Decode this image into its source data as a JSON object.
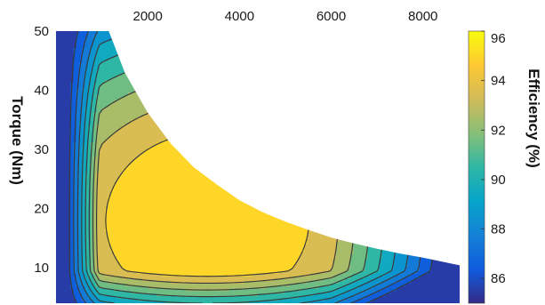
{
  "chart_data": {
    "type": "contour",
    "title": "",
    "xlabel": "",
    "ylabel": "Torque (Nm)",
    "colorbar_label": "Efficiency (%)",
    "xlim": [
      0,
      8800
    ],
    "ylim": [
      4,
      50
    ],
    "clim": [
      85,
      96
    ],
    "x_ticks": [
      2000,
      4000,
      6000,
      8000
    ],
    "y_ticks": [
      10,
      20,
      30,
      40,
      50
    ],
    "colorbar_ticks": [
      86,
      88,
      90,
      92,
      94,
      96
    ],
    "colormap": "parula",
    "colormap_colors": [
      "#352a87",
      "#0f5cdd",
      "#1481d6",
      "#06a4ca",
      "#2eb7a4",
      "#87bf77",
      "#d1bb59",
      "#fec832",
      "#f9fb0e"
    ],
    "contour_levels": [
      86,
      87,
      88,
      89,
      90,
      91,
      92,
      93,
      94
    ],
    "torque_limit_curve": {
      "x": [
        1150,
        1500,
        2000,
        2500,
        3000,
        3500,
        4000,
        4500,
        5000,
        5500,
        6000,
        6500,
        7000,
        7500,
        8000,
        8500,
        8800
      ],
      "y": [
        50,
        43,
        36.2,
        31,
        27,
        24.1,
        21.4,
        19.4,
        17.8,
        16.4,
        15.1,
        14.1,
        13.2,
        12.4,
        11.7,
        10.9,
        10.4
      ]
    },
    "efficiency_peak": {
      "x": 3300,
      "y": 18,
      "value": 95
    }
  }
}
